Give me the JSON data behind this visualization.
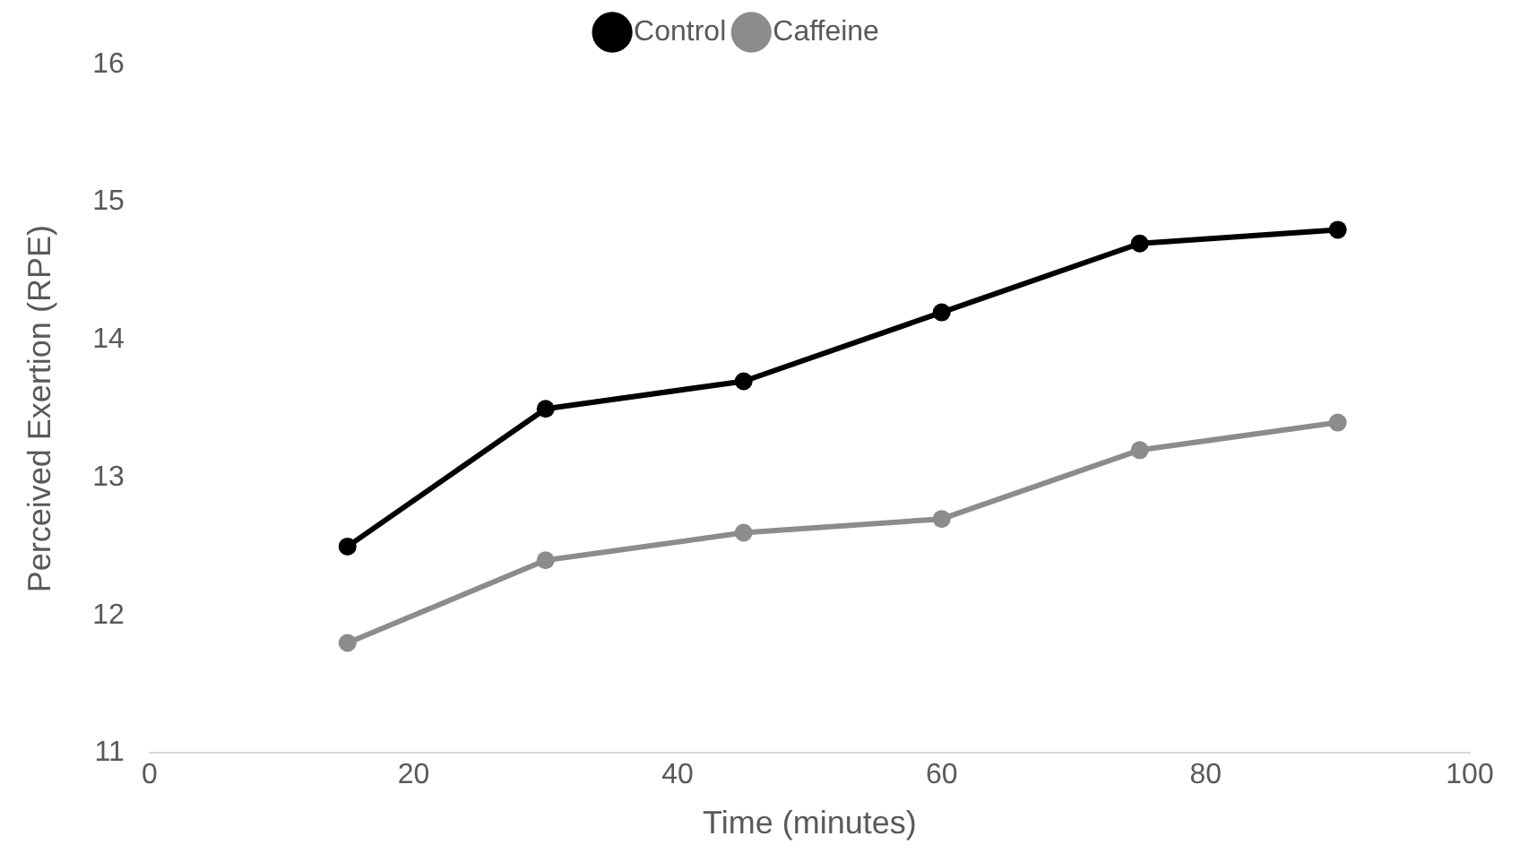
{
  "chart_data": {
    "type": "line",
    "xlabel": "Time (minutes)",
    "ylabel": "Perceived Exertion (RPE)",
    "x": [
      15,
      30,
      45,
      60,
      75,
      90
    ],
    "series": [
      {
        "name": "Control",
        "color": "#000000",
        "values": [
          12.5,
          13.5,
          13.7,
          14.2,
          14.7,
          14.8
        ]
      },
      {
        "name": "Caffeine",
        "color": "#8c8c8c",
        "values": [
          11.8,
          12.4,
          12.6,
          12.7,
          13.2,
          13.4
        ]
      }
    ],
    "xlim": [
      0,
      100
    ],
    "xticks": [
      0,
      20,
      40,
      60,
      80,
      100
    ],
    "ylim": [
      11,
      16
    ],
    "yticks": [
      11,
      12,
      13,
      14,
      15,
      16
    ],
    "grid": false,
    "legend": "top",
    "marker": "circle",
    "line_style": "solid"
  }
}
